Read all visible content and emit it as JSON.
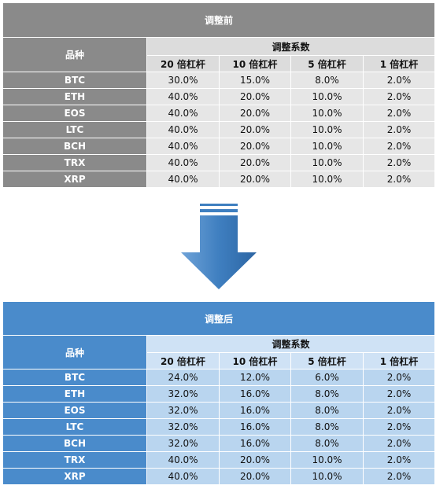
{
  "colors": {
    "before_header": "#8a8a8a",
    "before_cell": "#e6e6e6",
    "after_header": "#4a8bcb",
    "after_cell": "#b9d5ef",
    "arrow": "#3f7fc0"
  },
  "header": {
    "variety": "品种",
    "group": "调整系数",
    "leverages": [
      "20 倍杠杆",
      "10 倍杠杆",
      "5 倍杠杆",
      "1 倍杠杆"
    ]
  },
  "arrow_icon": "down-arrow-icon",
  "tables": [
    {
      "title": "调整前",
      "rows": [
        {
          "symbol": "BTC",
          "values": [
            "30.0%",
            "15.0%",
            "8.0%",
            "2.0%"
          ]
        },
        {
          "symbol": "ETH",
          "values": [
            "40.0%",
            "20.0%",
            "10.0%",
            "2.0%"
          ]
        },
        {
          "symbol": "EOS",
          "values": [
            "40.0%",
            "20.0%",
            "10.0%",
            "2.0%"
          ]
        },
        {
          "symbol": "LTC",
          "values": [
            "40.0%",
            "20.0%",
            "10.0%",
            "2.0%"
          ]
        },
        {
          "symbol": "BCH",
          "values": [
            "40.0%",
            "20.0%",
            "10.0%",
            "2.0%"
          ]
        },
        {
          "symbol": "TRX",
          "values": [
            "40.0%",
            "20.0%",
            "10.0%",
            "2.0%"
          ]
        },
        {
          "symbol": "XRP",
          "values": [
            "40.0%",
            "20.0%",
            "10.0%",
            "2.0%"
          ]
        }
      ]
    },
    {
      "title": "调整后",
      "rows": [
        {
          "symbol": "BTC",
          "values": [
            "24.0%",
            "12.0%",
            "6.0%",
            "2.0%"
          ]
        },
        {
          "symbol": "ETH",
          "values": [
            "32.0%",
            "16.0%",
            "8.0%",
            "2.0%"
          ]
        },
        {
          "symbol": "EOS",
          "values": [
            "32.0%",
            "16.0%",
            "8.0%",
            "2.0%"
          ]
        },
        {
          "symbol": "LTC",
          "values": [
            "32.0%",
            "16.0%",
            "8.0%",
            "2.0%"
          ]
        },
        {
          "symbol": "BCH",
          "values": [
            "32.0%",
            "16.0%",
            "8.0%",
            "2.0%"
          ]
        },
        {
          "symbol": "TRX",
          "values": [
            "40.0%",
            "20.0%",
            "10.0%",
            "2.0%"
          ]
        },
        {
          "symbol": "XRP",
          "values": [
            "40.0%",
            "20.0%",
            "10.0%",
            "2.0%"
          ]
        }
      ]
    }
  ]
}
